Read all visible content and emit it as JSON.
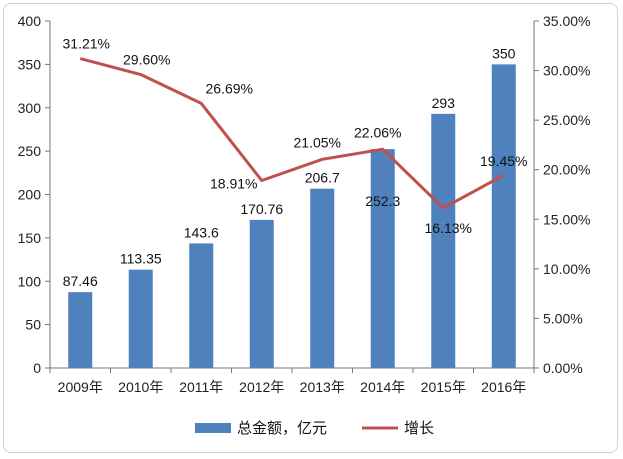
{
  "chart_data": {
    "type": "bar",
    "categories": [
      "2009年",
      "2010年",
      "2011年",
      "2012年",
      "2013年",
      "2014年",
      "2015年",
      "2016年"
    ],
    "series": [
      {
        "name": "总金额，亿元",
        "type": "bar",
        "axis": "left",
        "values": [
          87.46,
          113.35,
          143.6,
          170.76,
          206.7,
          252.3,
          293,
          350
        ],
        "labels": [
          "87.46",
          "113.35",
          "143.6",
          "170.76",
          "206.7",
          "252.3",
          "293",
          "350"
        ],
        "color": "#4f81bd"
      },
      {
        "name": "增长",
        "type": "line",
        "axis": "right",
        "values": [
          31.21,
          29.6,
          26.69,
          18.91,
          21.05,
          22.06,
          16.13,
          19.45
        ],
        "labels": [
          "31.21%",
          "29.60%",
          "26.69%",
          "18.91%",
          "21.05%",
          "22.06%",
          "16.13%",
          "19.45%"
        ],
        "color": "#c0504d"
      }
    ],
    "y_left": {
      "range": [
        0,
        400
      ],
      "ticks": [
        0,
        50,
        100,
        150,
        200,
        250,
        300,
        350,
        400
      ],
      "tick_labels": [
        "0",
        "50",
        "100",
        "150",
        "200",
        "250",
        "300",
        "350",
        "400"
      ]
    },
    "y_right": {
      "range": [
        0,
        35
      ],
      "ticks": [
        0,
        5,
        10,
        15,
        20,
        25,
        30,
        35
      ],
      "tick_labels": [
        "0.00%",
        "5.00%",
        "10.00%",
        "15.00%",
        "20.00%",
        "25.00%",
        "30.00%",
        "35.00%"
      ]
    },
    "grid": false,
    "legend": {
      "position": "bottom",
      "entries": [
        "总金额，亿元",
        "增长"
      ]
    }
  }
}
